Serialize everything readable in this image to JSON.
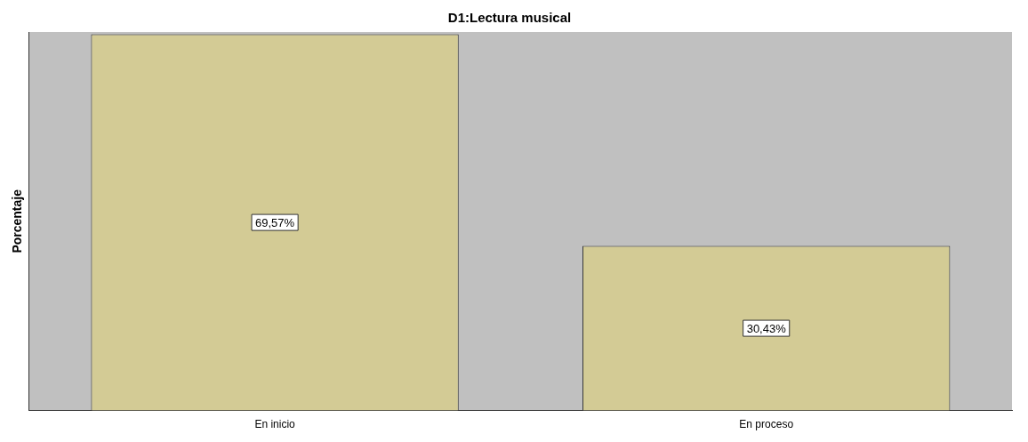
{
  "chart_data": {
    "type": "bar",
    "title": "D1:Lectura musical",
    "ylabel": "Porcentaje",
    "categories": [
      "En inicio",
      "En proceso"
    ],
    "values": [
      69.57,
      30.43
    ],
    "value_labels": [
      "69,57%",
      "30,43%"
    ],
    "color": "#d3cb95",
    "grid": false,
    "legend": false,
    "tick_labels": "x"
  }
}
